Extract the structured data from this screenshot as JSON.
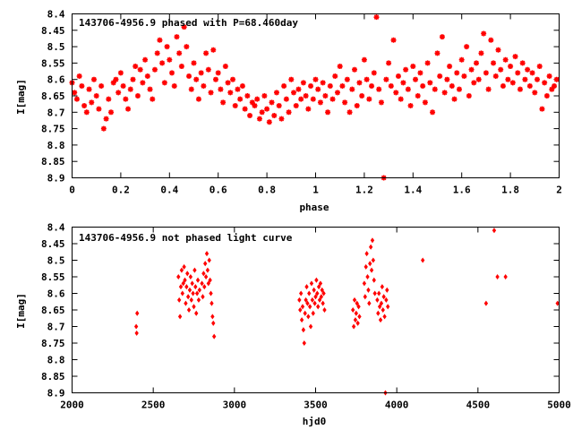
{
  "chart_data": [
    {
      "type": "scatter",
      "title": "143706-4956.9 phased with P=68.460day",
      "xlabel": "phase",
      "ylabel": "I[mag]",
      "xlim": [
        0,
        2
      ],
      "ylim": [
        8.9,
        8.4
      ],
      "y_inverted": true,
      "x_ticks": [
        "0",
        "0.2",
        "0.4",
        "0.6",
        "0.8",
        "1",
        "1.2",
        "1.4",
        "1.6",
        "1.8",
        "2"
      ],
      "x_tick_values": [
        0,
        0.2,
        0.4,
        0.6,
        0.8,
        1.0,
        1.2,
        1.4,
        1.6,
        1.8,
        2.0
      ],
      "y_ticks": [
        "8.4",
        "8.45",
        "8.5",
        "8.55",
        "8.6",
        "8.65",
        "8.7",
        "8.75",
        "8.8",
        "8.85",
        "8.9"
      ],
      "y_tick_values": [
        8.4,
        8.45,
        8.5,
        8.55,
        8.6,
        8.65,
        8.7,
        8.75,
        8.8,
        8.85,
        8.9
      ],
      "marker_color": "#ff0000",
      "points": [
        [
          0.0,
          8.61
        ],
        [
          0.01,
          8.64
        ],
        [
          0.02,
          8.66
        ],
        [
          0.03,
          8.59
        ],
        [
          0.04,
          8.62
        ],
        [
          0.05,
          8.68
        ],
        [
          0.06,
          8.7
        ],
        [
          0.07,
          8.63
        ],
        [
          0.08,
          8.67
        ],
        [
          0.09,
          8.6
        ],
        [
          0.1,
          8.65
        ],
        [
          0.11,
          8.69
        ],
        [
          0.12,
          8.62
        ],
        [
          0.13,
          8.75
        ],
        [
          0.14,
          8.72
        ],
        [
          0.15,
          8.66
        ],
        [
          0.16,
          8.7
        ],
        [
          0.17,
          8.61
        ],
        [
          0.18,
          8.6
        ],
        [
          0.19,
          8.64
        ],
        [
          0.2,
          8.58
        ],
        [
          0.21,
          8.62
        ],
        [
          0.22,
          8.66
        ],
        [
          0.23,
          8.69
        ],
        [
          0.24,
          8.63
        ],
        [
          0.25,
          8.6
        ],
        [
          0.26,
          8.56
        ],
        [
          0.27,
          8.65
        ],
        [
          0.28,
          8.57
        ],
        [
          0.29,
          8.61
        ],
        [
          0.3,
          8.54
        ],
        [
          0.31,
          8.59
        ],
        [
          0.32,
          8.63
        ],
        [
          0.33,
          8.66
        ],
        [
          0.34,
          8.57
        ],
        [
          0.35,
          8.52
        ],
        [
          0.36,
          8.48
        ],
        [
          0.37,
          8.55
        ],
        [
          0.38,
          8.61
        ],
        [
          0.39,
          8.5
        ],
        [
          0.4,
          8.54
        ],
        [
          0.41,
          8.58
        ],
        [
          0.42,
          8.62
        ],
        [
          0.43,
          8.47
        ],
        [
          0.44,
          8.52
        ],
        [
          0.45,
          8.56
        ],
        [
          0.46,
          8.44
        ],
        [
          0.47,
          8.5
        ],
        [
          0.48,
          8.59
        ],
        [
          0.49,
          8.63
        ],
        [
          0.5,
          8.55
        ],
        [
          0.51,
          8.6
        ],
        [
          0.52,
          8.66
        ],
        [
          0.53,
          8.58
        ],
        [
          0.54,
          8.62
        ],
        [
          0.55,
          8.52
        ],
        [
          0.56,
          8.57
        ],
        [
          0.57,
          8.64
        ],
        [
          0.58,
          8.51
        ],
        [
          0.59,
          8.6
        ],
        [
          0.6,
          8.58
        ],
        [
          0.61,
          8.63
        ],
        [
          0.62,
          8.67
        ],
        [
          0.63,
          8.56
        ],
        [
          0.64,
          8.61
        ],
        [
          0.65,
          8.64
        ],
        [
          0.66,
          8.6
        ],
        [
          0.67,
          8.68
        ],
        [
          0.68,
          8.63
        ],
        [
          0.69,
          8.66
        ],
        [
          0.7,
          8.62
        ],
        [
          0.71,
          8.69
        ],
        [
          0.72,
          8.65
        ],
        [
          0.73,
          8.71
        ],
        [
          0.74,
          8.67
        ],
        [
          0.75,
          8.68
        ],
        [
          0.76,
          8.66
        ],
        [
          0.77,
          8.72
        ],
        [
          0.78,
          8.7
        ],
        [
          0.79,
          8.65
        ],
        [
          0.8,
          8.69
        ],
        [
          0.81,
          8.73
        ],
        [
          0.82,
          8.67
        ],
        [
          0.83,
          8.71
        ],
        [
          0.84,
          8.64
        ],
        [
          0.85,
          8.68
        ],
        [
          0.86,
          8.72
        ],
        [
          0.87,
          8.62
        ],
        [
          0.88,
          8.66
        ],
        [
          0.89,
          8.7
        ],
        [
          0.9,
          8.6
        ],
        [
          0.91,
          8.64
        ],
        [
          0.92,
          8.68
        ],
        [
          0.93,
          8.63
        ],
        [
          0.94,
          8.66
        ],
        [
          0.95,
          8.61
        ],
        [
          0.96,
          8.65
        ],
        [
          0.97,
          8.69
        ],
        [
          0.98,
          8.62
        ],
        [
          0.99,
          8.66
        ],
        [
          1.0,
          8.6
        ],
        [
          1.01,
          8.63
        ],
        [
          1.02,
          8.67
        ],
        [
          1.03,
          8.61
        ],
        [
          1.04,
          8.65
        ],
        [
          1.05,
          8.7
        ],
        [
          1.06,
          8.62
        ],
        [
          1.07,
          8.66
        ],
        [
          1.08,
          8.59
        ],
        [
          1.09,
          8.64
        ],
        [
          1.1,
          8.56
        ],
        [
          1.11,
          8.62
        ],
        [
          1.12,
          8.67
        ],
        [
          1.13,
          8.6
        ],
        [
          1.14,
          8.7
        ],
        [
          1.15,
          8.63
        ],
        [
          1.16,
          8.57
        ],
        [
          1.17,
          8.68
        ],
        [
          1.18,
          8.61
        ],
        [
          1.19,
          8.65
        ],
        [
          1.2,
          8.54
        ],
        [
          1.21,
          8.6
        ],
        [
          1.22,
          8.66
        ],
        [
          1.23,
          8.62
        ],
        [
          1.24,
          8.58
        ],
        [
          1.25,
          8.41
        ],
        [
          1.26,
          8.63
        ],
        [
          1.27,
          8.67
        ],
        [
          1.28,
          8.9
        ],
        [
          1.29,
          8.6
        ],
        [
          1.3,
          8.55
        ],
        [
          1.31,
          8.62
        ],
        [
          1.32,
          8.48
        ],
        [
          1.33,
          8.64
        ],
        [
          1.34,
          8.59
        ],
        [
          1.35,
          8.66
        ],
        [
          1.36,
          8.61
        ],
        [
          1.37,
          8.57
        ],
        [
          1.38,
          8.63
        ],
        [
          1.39,
          8.68
        ],
        [
          1.4,
          8.56
        ],
        [
          1.41,
          8.6
        ],
        [
          1.42,
          8.65
        ],
        [
          1.43,
          8.58
        ],
        [
          1.44,
          8.62
        ],
        [
          1.45,
          8.67
        ],
        [
          1.46,
          8.55
        ],
        [
          1.47,
          8.61
        ],
        [
          1.48,
          8.7
        ],
        [
          1.49,
          8.63
        ],
        [
          1.5,
          8.52
        ],
        [
          1.51,
          8.59
        ],
        [
          1.52,
          8.47
        ],
        [
          1.53,
          8.64
        ],
        [
          1.54,
          8.6
        ],
        [
          1.55,
          8.56
        ],
        [
          1.56,
          8.62
        ],
        [
          1.57,
          8.66
        ],
        [
          1.58,
          8.58
        ],
        [
          1.59,
          8.63
        ],
        [
          1.6,
          8.54
        ],
        [
          1.61,
          8.59
        ],
        [
          1.62,
          8.5
        ],
        [
          1.63,
          8.65
        ],
        [
          1.64,
          8.57
        ],
        [
          1.65,
          8.61
        ],
        [
          1.66,
          8.55
        ],
        [
          1.67,
          8.6
        ],
        [
          1.68,
          8.52
        ],
        [
          1.69,
          8.46
        ],
        [
          1.7,
          8.58
        ],
        [
          1.71,
          8.63
        ],
        [
          1.72,
          8.48
        ],
        [
          1.73,
          8.55
        ],
        [
          1.74,
          8.59
        ],
        [
          1.75,
          8.51
        ],
        [
          1.76,
          8.57
        ],
        [
          1.77,
          8.62
        ],
        [
          1.78,
          8.54
        ],
        [
          1.79,
          8.6
        ],
        [
          1.8,
          8.56
        ],
        [
          1.81,
          8.61
        ],
        [
          1.82,
          8.53
        ],
        [
          1.83,
          8.58
        ],
        [
          1.84,
          8.63
        ],
        [
          1.85,
          8.55
        ],
        [
          1.86,
          8.6
        ],
        [
          1.87,
          8.57
        ],
        [
          1.88,
          8.62
        ],
        [
          1.89,
          8.58
        ],
        [
          1.9,
          8.64
        ],
        [
          1.91,
          8.6
        ],
        [
          1.92,
          8.56
        ],
        [
          1.93,
          8.69
        ],
        [
          1.94,
          8.61
        ],
        [
          1.95,
          8.65
        ],
        [
          1.96,
          8.59
        ],
        [
          1.97,
          8.63
        ],
        [
          1.98,
          8.62
        ],
        [
          1.99,
          8.6
        ]
      ]
    },
    {
      "type": "scatter",
      "title": "143706-4956.9 not phased light curve",
      "xlabel": "hjd0",
      "ylabel": "I[mag]",
      "xlim": [
        2000,
        5000
      ],
      "ylim": [
        8.9,
        8.4
      ],
      "y_inverted": true,
      "x_ticks": [
        "2000",
        "2500",
        "3000",
        "3500",
        "4000",
        "4500",
        "5000"
      ],
      "x_tick_values": [
        2000,
        2500,
        3000,
        3500,
        4000,
        4500,
        5000
      ],
      "y_ticks": [
        "8.4",
        "8.45",
        "8.5",
        "8.55",
        "8.6",
        "8.65",
        "8.7",
        "8.75",
        "8.8",
        "8.85",
        "8.9"
      ],
      "y_tick_values": [
        8.4,
        8.45,
        8.5,
        8.55,
        8.6,
        8.65,
        8.7,
        8.75,
        8.8,
        8.85,
        8.9
      ],
      "marker_color": "#ff0000",
      "points": [
        [
          2395,
          8.7
        ],
        [
          2398,
          8.72
        ],
        [
          2401,
          8.66
        ],
        [
          2655,
          8.55
        ],
        [
          2660,
          8.62
        ],
        [
          2665,
          8.67
        ],
        [
          2670,
          8.58
        ],
        [
          2675,
          8.53
        ],
        [
          2680,
          8.6
        ],
        [
          2685,
          8.57
        ],
        [
          2690,
          8.52
        ],
        [
          2695,
          8.56
        ],
        [
          2700,
          8.63
        ],
        [
          2705,
          8.58
        ],
        [
          2710,
          8.54
        ],
        [
          2715,
          8.61
        ],
        [
          2720,
          8.65
        ],
        [
          2725,
          8.59
        ],
        [
          2730,
          8.55
        ],
        [
          2735,
          8.62
        ],
        [
          2740,
          8.57
        ],
        [
          2745,
          8.6
        ],
        [
          2750,
          8.64
        ],
        [
          2755,
          8.53
        ],
        [
          2760,
          8.58
        ],
        [
          2765,
          8.66
        ],
        [
          2770,
          8.6
        ],
        [
          2775,
          8.56
        ],
        [
          2780,
          8.62
        ],
        [
          2785,
          8.59
        ],
        [
          2800,
          8.57
        ],
        [
          2805,
          8.61
        ],
        [
          2810,
          8.54
        ],
        [
          2815,
          8.58
        ],
        [
          2820,
          8.51
        ],
        [
          2825,
          8.55
        ],
        [
          2830,
          8.48
        ],
        [
          2835,
          8.53
        ],
        [
          2840,
          8.57
        ],
        [
          2845,
          8.5
        ],
        [
          2850,
          8.56
        ],
        [
          2855,
          8.6
        ],
        [
          2860,
          8.63
        ],
        [
          2865,
          8.67
        ],
        [
          2870,
          8.69
        ],
        [
          2875,
          8.73
        ],
        [
          3400,
          8.62
        ],
        [
          3405,
          8.65
        ],
        [
          3410,
          8.6
        ],
        [
          3415,
          8.68
        ],
        [
          3420,
          8.64
        ],
        [
          3425,
          8.71
        ],
        [
          3430,
          8.75
        ],
        [
          3435,
          8.66
        ],
        [
          3440,
          8.62
        ],
        [
          3445,
          8.58
        ],
        [
          3450,
          8.63
        ],
        [
          3455,
          8.67
        ],
        [
          3460,
          8.6
        ],
        [
          3465,
          8.64
        ],
        [
          3470,
          8.7
        ],
        [
          3475,
          8.57
        ],
        [
          3480,
          8.62
        ],
        [
          3485,
          8.66
        ],
        [
          3490,
          8.59
        ],
        [
          3495,
          8.63
        ],
        [
          3500,
          8.61
        ],
        [
          3505,
          8.56
        ],
        [
          3510,
          8.6
        ],
        [
          3515,
          8.64
        ],
        [
          3520,
          8.58
        ],
        [
          3525,
          8.62
        ],
        [
          3530,
          8.57
        ],
        [
          3535,
          8.61
        ],
        [
          3540,
          8.59
        ],
        [
          3545,
          8.63
        ],
        [
          3550,
          8.6
        ],
        [
          3555,
          8.65
        ],
        [
          3730,
          8.65
        ],
        [
          3735,
          8.7
        ],
        [
          3740,
          8.62
        ],
        [
          3745,
          8.68
        ],
        [
          3750,
          8.66
        ],
        [
          3755,
          8.63
        ],
        [
          3760,
          8.69
        ],
        [
          3765,
          8.64
        ],
        [
          3770,
          8.67
        ],
        [
          3800,
          8.57
        ],
        [
          3805,
          8.61
        ],
        [
          3810,
          8.52
        ],
        [
          3815,
          8.48
        ],
        [
          3820,
          8.55
        ],
        [
          3825,
          8.59
        ],
        [
          3830,
          8.63
        ],
        [
          3835,
          8.51
        ],
        [
          3840,
          8.46
        ],
        [
          3845,
          8.53
        ],
        [
          3850,
          8.44
        ],
        [
          3855,
          8.5
        ],
        [
          3860,
          8.56
        ],
        [
          3865,
          8.6
        ],
        [
          3880,
          8.62
        ],
        [
          3885,
          8.66
        ],
        [
          3890,
          8.6
        ],
        [
          3895,
          8.64
        ],
        [
          3900,
          8.68
        ],
        [
          3905,
          8.63
        ],
        [
          3910,
          8.58
        ],
        [
          3915,
          8.65
        ],
        [
          3920,
          8.61
        ],
        [
          3925,
          8.67
        ],
        [
          3930,
          8.9
        ],
        [
          3935,
          8.62
        ],
        [
          3940,
          8.59
        ],
        [
          3945,
          8.64
        ],
        [
          4160,
          8.5
        ],
        [
          4550,
          8.63
        ],
        [
          4600,
          8.41
        ],
        [
          4620,
          8.55
        ],
        [
          4670,
          8.55
        ],
        [
          4990,
          8.63
        ]
      ]
    }
  ]
}
